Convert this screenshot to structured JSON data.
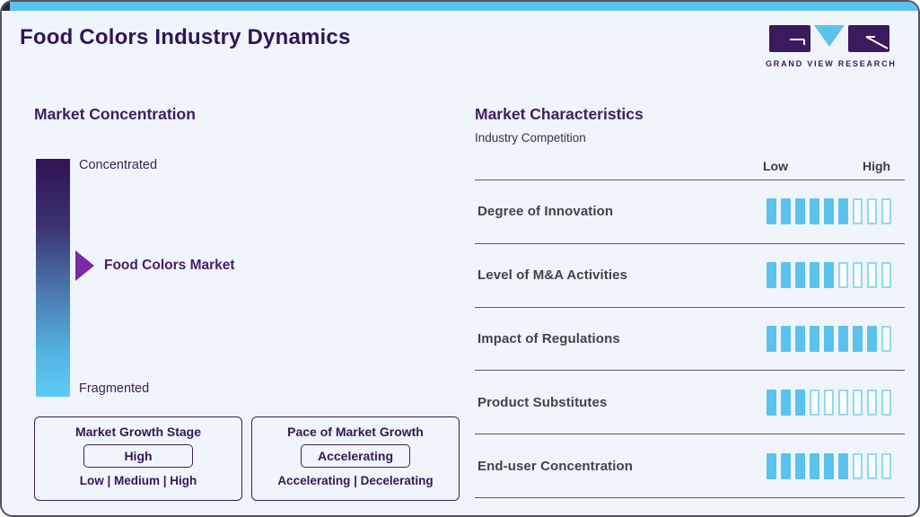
{
  "page": {
    "title": "Food Colors Industry Dynamics",
    "logo": {
      "name": "Grand View Research logo",
      "text": "GRAND VIEW RESEARCH"
    }
  },
  "market_concentration": {
    "heading": "Market Concentration",
    "scale_top_label": "Concentrated",
    "scale_bottom_label": "Fragmented",
    "pointer_label": "Food Colors Market",
    "pointer_position_pct_from_top": 45
  },
  "growth_boxes": [
    {
      "title": "Market Growth Stage",
      "value": "High",
      "options": "Low | Medium | High"
    },
    {
      "title": "Pace of Market Growth",
      "value": "Accelerating",
      "options": "Accelerating | Decelerating"
    }
  ],
  "market_characteristics": {
    "heading": "Market Characteristics",
    "subheading": "Industry Competition",
    "scale_low_label": "Low",
    "scale_high_label": "High",
    "rows": [
      {
        "label": "Degree of Innovation",
        "filled": 6,
        "total": 9
      },
      {
        "label": "Level of M&A Activities",
        "filled": 5,
        "total": 9
      },
      {
        "label": "Impact of Regulations",
        "filled": 8,
        "total": 9
      },
      {
        "label": "Product Substitutes",
        "filled": 3,
        "total": 9
      },
      {
        "label": "End-user Concentration",
        "filled": 6,
        "total": 9
      }
    ]
  },
  "chart_data": {
    "type": "bar",
    "title": "Market Characteristics - Industry Competition",
    "categories": [
      "Degree of Innovation",
      "Level of M&A Activities",
      "Impact of Regulations",
      "Product Substitutes",
      "End-user Concentration"
    ],
    "values": [
      6,
      5,
      8,
      3,
      6
    ],
    "value_scale": {
      "segments_total": 9,
      "min_label": "Low",
      "max_label": "High"
    },
    "legend_position": "none",
    "grid": false
  },
  "colors": {
    "accent_blue": "#5bc2ee",
    "dark_purple": "#31135a",
    "heading_purple": "#3f1d63",
    "pointer_violet": "#7b2aa5",
    "empty_bar_border": "#90d8f5",
    "divider": "#5a5662",
    "background": "#f0f5fb"
  }
}
